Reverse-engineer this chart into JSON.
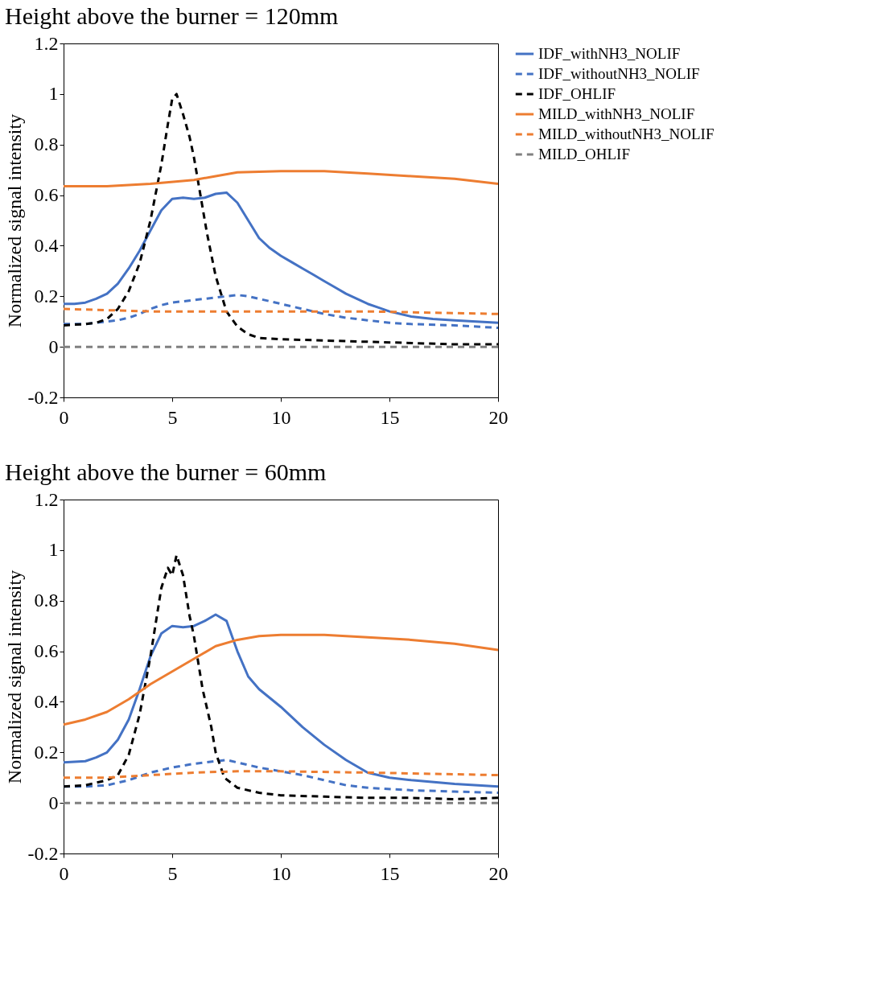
{
  "chart_data": [
    {
      "type": "line",
      "title": "Height above the burner = 120mm",
      "ylabel": "Normalized signal intensity",
      "xlim": [
        0,
        20
      ],
      "xticks": [
        0,
        5,
        10,
        15,
        20
      ],
      "ylim": [
        -0.2,
        1.2
      ],
      "yticks": [
        -0.2,
        0,
        0.2,
        0.4,
        0.6,
        0.8,
        1,
        1.2
      ],
      "legend": "top right",
      "series": [
        {
          "name": "IDF_withNH3_NOLIF",
          "color": "#4472c4",
          "line_style": "solid",
          "x": [
            0,
            0.5,
            1,
            1.5,
            2,
            2.5,
            3,
            3.5,
            4,
            4.5,
            5,
            5.5,
            6,
            6.5,
            7,
            7.5,
            8,
            8.5,
            9,
            9.5,
            10,
            10.5,
            11,
            11.5,
            12,
            12.5,
            13,
            13.5,
            14,
            14.5,
            15,
            15.5,
            16,
            17,
            18,
            19,
            20
          ],
          "values": [
            0.17,
            0.17,
            0.175,
            0.19,
            0.21,
            0.25,
            0.31,
            0.38,
            0.46,
            0.54,
            0.585,
            0.59,
            0.585,
            0.59,
            0.605,
            0.61,
            0.57,
            0.5,
            0.43,
            0.39,
            0.36,
            0.335,
            0.31,
            0.285,
            0.26,
            0.235,
            0.21,
            0.19,
            0.17,
            0.155,
            0.14,
            0.13,
            0.12,
            0.11,
            0.105,
            0.1,
            0.095
          ]
        },
        {
          "name": "IDF_withoutNH3_NOLIF",
          "color": "#4472c4",
          "line_style": "dashed",
          "x": [
            0,
            1,
            1.5,
            2,
            2.5,
            3,
            3.5,
            4,
            4.5,
            5,
            6,
            7,
            8,
            8.5,
            9,
            10,
            11,
            12,
            13,
            14,
            15,
            16,
            18,
            20
          ],
          "values": [
            0.09,
            0.09,
            0.095,
            0.1,
            0.105,
            0.115,
            0.13,
            0.15,
            0.165,
            0.175,
            0.185,
            0.195,
            0.205,
            0.2,
            0.19,
            0.17,
            0.15,
            0.13,
            0.115,
            0.105,
            0.095,
            0.09,
            0.085,
            0.075
          ]
        },
        {
          "name": "IDF_OHLIF",
          "color": "#000000",
          "line_style": "dashed",
          "x": [
            0,
            1,
            1.5,
            2,
            2.5,
            3,
            3.5,
            4,
            4.5,
            4.8,
            5,
            5.2,
            5.5,
            5.8,
            6,
            6.3,
            6.6,
            7,
            7.5,
            8,
            8.5,
            9,
            10,
            12,
            14,
            16,
            18,
            20
          ],
          "values": [
            0.085,
            0.09,
            0.095,
            0.11,
            0.15,
            0.22,
            0.33,
            0.5,
            0.72,
            0.88,
            0.98,
            1.0,
            0.92,
            0.83,
            0.75,
            0.6,
            0.45,
            0.28,
            0.14,
            0.08,
            0.05,
            0.035,
            0.03,
            0.025,
            0.02,
            0.015,
            0.01,
            0.01
          ]
        },
        {
          "name": "MILD_withNH3_NOLIF",
          "color": "#ed7d31",
          "line_style": "solid",
          "x": [
            0,
            2,
            4,
            6,
            7,
            8,
            10,
            12,
            14,
            16,
            18,
            20
          ],
          "values": [
            0.635,
            0.635,
            0.645,
            0.66,
            0.675,
            0.69,
            0.695,
            0.695,
            0.685,
            0.675,
            0.665,
            0.645
          ]
        },
        {
          "name": "MILD_withoutNH3_NOLIF",
          "color": "#ed7d31",
          "line_style": "dashed",
          "x": [
            0,
            2,
            4,
            6,
            10,
            14,
            20
          ],
          "values": [
            0.15,
            0.145,
            0.14,
            0.14,
            0.14,
            0.14,
            0.13
          ]
        },
        {
          "name": "MILD_OHLIF",
          "color": "#808080",
          "line_style": "dashed",
          "x": [
            0,
            5,
            10,
            15,
            20
          ],
          "values": [
            0,
            0,
            0,
            0,
            0
          ]
        }
      ]
    },
    {
      "type": "line",
      "title": "Height above the burner = 60mm",
      "ylabel": "Normalized signal intensity",
      "xlim": [
        0,
        20
      ],
      "xticks": [
        0,
        5,
        10,
        15,
        20
      ],
      "ylim": [
        -0.2,
        1.2
      ],
      "yticks": [
        -0.2,
        0,
        0.2,
        0.4,
        0.6,
        0.8,
        1,
        1.2
      ],
      "series": [
        {
          "color": "#4472c4",
          "line_style": "solid",
          "x": [
            0,
            1,
            1.5,
            2,
            2.5,
            3,
            3.5,
            4,
            4.5,
            5,
            5.5,
            6,
            6.5,
            7,
            7.5,
            8,
            8.5,
            9,
            10,
            11,
            12,
            13,
            14,
            15,
            16,
            18,
            20
          ],
          "values": [
            0.16,
            0.165,
            0.18,
            0.2,
            0.25,
            0.33,
            0.45,
            0.58,
            0.67,
            0.7,
            0.695,
            0.7,
            0.72,
            0.745,
            0.72,
            0.6,
            0.5,
            0.45,
            0.38,
            0.3,
            0.23,
            0.17,
            0.12,
            0.1,
            0.09,
            0.075,
            0.065
          ]
        },
        {
          "color": "#4472c4",
          "line_style": "dashed",
          "x": [
            0,
            1,
            2,
            3,
            4,
            5,
            6,
            7,
            7.5,
            8,
            9,
            10,
            11,
            12,
            13,
            14,
            16,
            18,
            20
          ],
          "values": [
            0.065,
            0.065,
            0.07,
            0.09,
            0.12,
            0.14,
            0.155,
            0.165,
            0.17,
            0.16,
            0.14,
            0.125,
            0.11,
            0.09,
            0.07,
            0.06,
            0.05,
            0.045,
            0.04
          ]
        },
        {
          "color": "#000000",
          "line_style": "dashed",
          "x": [
            0,
            1,
            1.5,
            2,
            2.5,
            3,
            3.5,
            4,
            4.5,
            4.8,
            5,
            5.2,
            5.5,
            5.8,
            6,
            6.4,
            6.8,
            7,
            7.4,
            8,
            9,
            10,
            12,
            14,
            16,
            18,
            20
          ],
          "values": [
            0.065,
            0.07,
            0.08,
            0.09,
            0.11,
            0.19,
            0.35,
            0.58,
            0.85,
            0.93,
            0.9,
            0.98,
            0.9,
            0.74,
            0.66,
            0.45,
            0.3,
            0.2,
            0.1,
            0.06,
            0.04,
            0.03,
            0.025,
            0.02,
            0.02,
            0.015,
            0.02
          ]
        },
        {
          "color": "#ed7d31",
          "line_style": "solid",
          "x": [
            0,
            1,
            2,
            3,
            4,
            5,
            6,
            7,
            8,
            9,
            10,
            12,
            14,
            16,
            18,
            20
          ],
          "values": [
            0.31,
            0.33,
            0.36,
            0.41,
            0.47,
            0.52,
            0.57,
            0.62,
            0.645,
            0.66,
            0.665,
            0.665,
            0.655,
            0.645,
            0.63,
            0.605
          ]
        },
        {
          "color": "#ed7d31",
          "line_style": "dashed",
          "x": [
            0,
            2,
            4,
            6,
            8,
            10,
            14,
            20
          ],
          "values": [
            0.1,
            0.1,
            0.11,
            0.12,
            0.125,
            0.125,
            0.12,
            0.11
          ]
        },
        {
          "color": "#808080",
          "line_style": "dashed",
          "x": [
            0,
            5,
            10,
            15,
            20
          ],
          "values": [
            0,
            0,
            0,
            0,
            0
          ]
        }
      ]
    }
  ]
}
